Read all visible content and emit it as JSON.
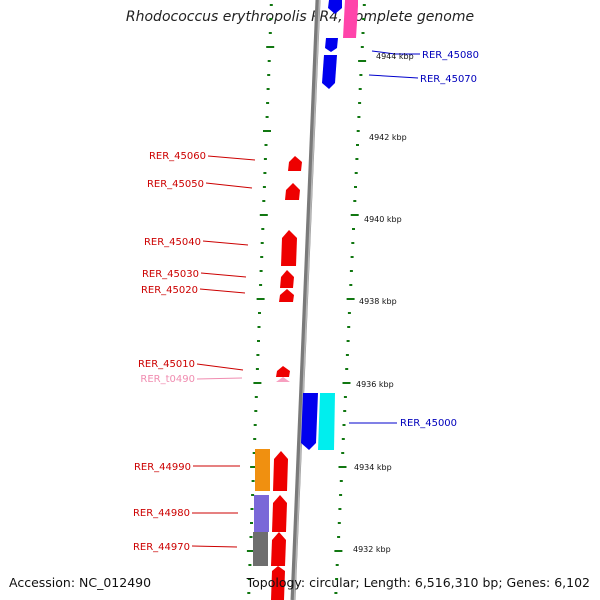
{
  "header": {
    "title": "Rhodococcus erythropolis PR4, complete genome"
  },
  "footer": {
    "accession": "Accession: NC_012490",
    "summary": "Topology: circular; Length: 6,516,310 bp; Genes: 6,102"
  },
  "colors": {
    "forward_gene": "#ee0000",
    "reverse_gene": "#0000ee",
    "trna": "#f08cb0",
    "ruler": "#117711",
    "backbone": "#888888"
  },
  "ruler_labels": [
    "4944 kbp",
    "4942 kbp",
    "4940 kbp",
    "4938 kbp",
    "4936 kbp",
    "4934 kbp",
    "4932 kbp"
  ],
  "gene_labels": [
    {
      "text": "RER_45080",
      "strand": "reverse"
    },
    {
      "text": "RER_45070",
      "strand": "reverse"
    },
    {
      "text": "RER_45060",
      "strand": "forward"
    },
    {
      "text": "RER_45050",
      "strand": "forward"
    },
    {
      "text": "RER_45040",
      "strand": "forward"
    },
    {
      "text": "RER_45030",
      "strand": "forward"
    },
    {
      "text": "RER_45020",
      "strand": "forward"
    },
    {
      "text": "RER_45010",
      "strand": "forward"
    },
    {
      "text": "RER_t0490",
      "strand": "trna"
    },
    {
      "text": "RER_45000",
      "strand": "reverse"
    },
    {
      "text": "RER_44990",
      "strand": "forward"
    },
    {
      "text": "RER_44980",
      "strand": "forward"
    },
    {
      "text": "RER_44970",
      "strand": "forward"
    }
  ]
}
